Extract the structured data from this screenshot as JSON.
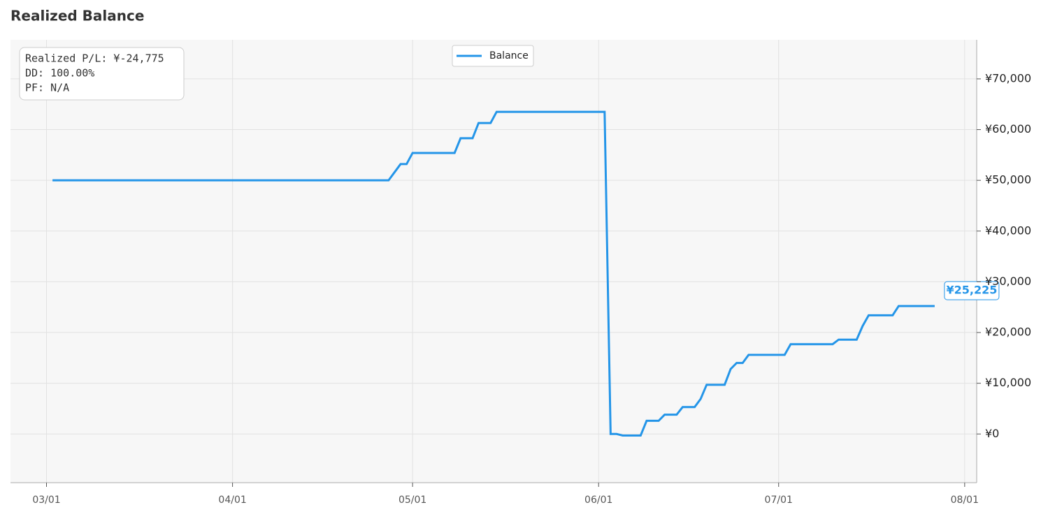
{
  "chart_data": {
    "type": "line",
    "title": "Realized Balance",
    "annotations": [
      "Realized P/L: ¥-24,775",
      "DD: 100.00%",
      "PF: N/A"
    ],
    "x": [
      "03/02",
      "04/27",
      "04/28",
      "04/29",
      "04/30",
      "05/01",
      "05/08",
      "05/09",
      "05/11",
      "05/12",
      "05/14",
      "05/15",
      "06/02",
      "06/03",
      "06/04",
      "06/05",
      "06/08",
      "06/09",
      "06/11",
      "06/12",
      "06/14",
      "06/15",
      "06/17",
      "06/18",
      "06/19",
      "06/22",
      "06/23",
      "06/24",
      "06/25",
      "06/26",
      "07/02",
      "07/03",
      "07/10",
      "07/11",
      "07/14",
      "07/15",
      "07/16",
      "07/20",
      "07/21",
      "07/27"
    ],
    "series": [
      {
        "name": "Balance",
        "color": "#2495e8",
        "values": [
          50000,
          50000,
          51600,
          53200,
          53200,
          55400,
          55400,
          58300,
          58300,
          61300,
          61300,
          63500,
          63500,
          0,
          0,
          -300,
          -300,
          2600,
          2600,
          3800,
          3800,
          5300,
          5300,
          6900,
          9700,
          9700,
          12800,
          14000,
          14000,
          15600,
          15600,
          17700,
          17700,
          18600,
          18600,
          21300,
          23400,
          23400,
          25225,
          25225
        ],
        "value_labels": [
          null,
          null,
          null,
          null,
          null,
          null,
          null,
          null,
          null,
          null,
          null,
          null,
          null,
          null,
          null,
          null,
          null,
          null,
          null,
          null,
          null,
          null,
          null,
          null,
          null,
          null,
          null,
          null,
          null,
          null,
          null,
          null,
          null,
          null,
          null,
          null,
          null,
          null,
          null,
          "¥25,225"
        ]
      }
    ],
    "xlim": [
      "02/23",
      "08/03"
    ],
    "xticks": [
      "03/01",
      "04/01",
      "05/01",
      "06/01",
      "07/01",
      "08/01"
    ],
    "ylim": [
      -9600,
      77700
    ],
    "yticks": [
      {
        "value": 0,
        "label": "¥0"
      },
      {
        "value": 10000,
        "label": "¥10,000"
      },
      {
        "value": 20000,
        "label": "¥20,000"
      },
      {
        "value": 30000,
        "label": "¥30,000"
      },
      {
        "value": 40000,
        "label": "¥40,000"
      },
      {
        "value": 50000,
        "label": "¥50,000"
      },
      {
        "value": 60000,
        "label": "¥60,000"
      },
      {
        "value": 70000,
        "label": "¥70,000"
      }
    ],
    "grid": true,
    "legend": "top"
  }
}
